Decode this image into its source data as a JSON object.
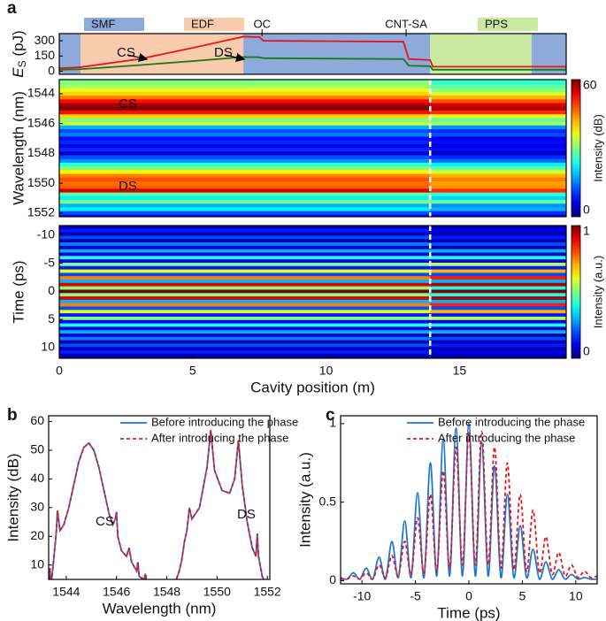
{
  "chart_data": [
    {
      "panel": "a",
      "type": "line",
      "ylabel": "E",
      "ylabel_sub": "S",
      "ylabel_unit": "(pJ)",
      "x": [
        0,
        0.8,
        3,
        5,
        6.9,
        7.5,
        7.65,
        12.9,
        13.1,
        13.9,
        14.0,
        19
      ],
      "series": [
        {
          "name": "CS",
          "color": "#e8141c",
          "values": [
            30,
            40,
            120,
            230,
            340,
            335,
            300,
            290,
            120,
            110,
            45,
            45
          ]
        },
        {
          "name": "DS",
          "color": "#1a7a1a",
          "values": [
            15,
            20,
            60,
            100,
            140,
            138,
            128,
            120,
            55,
            50,
            15,
            15
          ]
        }
      ],
      "xlim": [
        0,
        19
      ],
      "ylim": [
        -30,
        370
      ],
      "yticks": [
        0,
        150,
        300
      ],
      "regions": [
        {
          "color": "#8eaadb",
          "start": 0,
          "end": 0.8
        },
        {
          "color": "#f8cbad",
          "start": 0.8,
          "end": 6.9
        },
        {
          "color": "#8eaadb",
          "start": 6.9,
          "end": 13.9
        },
        {
          "color": "#c9e8a0",
          "start": 13.9,
          "end": 17.7
        },
        {
          "color": "#8eaadb",
          "start": 17.7,
          "end": 19
        }
      ],
      "legend": [
        {
          "name": "SMF",
          "color": "#8eaadb"
        },
        {
          "name": "EDF",
          "color": "#f8cbad"
        },
        {
          "name": "PPS",
          "color": "#c9e8a0"
        }
      ],
      "markers": [
        {
          "label": "OC",
          "x": 7.6
        },
        {
          "label": "CNT-SA",
          "x": 13.0
        }
      ]
    },
    {
      "type": "heatmap",
      "ylabel": "Wavelength (nm)",
      "y": [
        1543.25,
        1543.5,
        1543.75,
        1544.0,
        1544.25,
        1544.5,
        1544.75,
        1545.0,
        1545.25,
        1545.5,
        1545.75,
        1546.0,
        1546.25,
        1546.5,
        1546.75,
        1547.0,
        1547.25,
        1547.5,
        1547.75,
        1548.0,
        1548.25,
        1548.5,
        1548.75,
        1549.0,
        1549.25,
        1549.5,
        1549.75,
        1550.0,
        1550.25,
        1550.5,
        1550.75,
        1551.0,
        1551.25,
        1551.5,
        1551.75,
        1552.0,
        1552.25
      ],
      "x_edges": [
        0,
        13.9,
        19
      ],
      "z": [
        [
          30,
          25
        ],
        [
          32,
          28
        ],
        [
          36,
          30
        ],
        [
          40,
          35
        ],
        [
          45,
          42
        ],
        [
          52,
          48
        ],
        [
          58,
          55
        ],
        [
          60,
          57
        ],
        [
          52,
          50
        ],
        [
          40,
          38
        ],
        [
          30,
          28
        ],
        [
          34,
          32
        ],
        [
          18,
          16
        ],
        [
          12,
          10
        ],
        [
          15,
          12
        ],
        [
          8,
          6
        ],
        [
          10,
          8
        ],
        [
          6,
          5
        ],
        [
          10,
          8
        ],
        [
          5,
          4
        ],
        [
          12,
          10
        ],
        [
          16,
          14
        ],
        [
          25,
          22
        ],
        [
          30,
          28
        ],
        [
          38,
          35
        ],
        [
          45,
          42
        ],
        [
          48,
          45
        ],
        [
          46,
          43
        ],
        [
          47,
          44
        ],
        [
          55,
          50
        ],
        [
          28,
          25
        ],
        [
          22,
          20
        ],
        [
          30,
          28
        ],
        [
          18,
          16
        ],
        [
          22,
          18
        ],
        [
          12,
          10
        ],
        [
          8,
          6
        ]
      ],
      "xlim": [
        0,
        19
      ],
      "ylim": [
        1543.05,
        1552.25
      ],
      "y_inverted": true,
      "yticks": [
        1544,
        1546,
        1548,
        1550,
        1552
      ],
      "vline": 13.9,
      "colorbar": {
        "label": "Intensity (dB)",
        "lim": [
          0,
          60
        ],
        "ticks": [
          0,
          60
        ]
      },
      "annotations": [
        "CS",
        "DS"
      ]
    },
    {
      "type": "heatmap",
      "ylabel": "Time (ps)",
      "xlabel": "Cavity position (m)",
      "y": [
        -11.4,
        -10.8,
        -10.2,
        -9.6,
        -9,
        -8.4,
        -7.8,
        -7.2,
        -6.6,
        -6,
        -5.4,
        -4.8,
        -4.2,
        -3.6,
        -3,
        -2.4,
        -1.8,
        -1.2,
        -0.6,
        0,
        0.6,
        1.2,
        1.8,
        2.4,
        3,
        3.6,
        4.2,
        4.8,
        5.4,
        6,
        6.6,
        7.2,
        7.8,
        8.4,
        9,
        9.6,
        10.2,
        10.8,
        11.4
      ],
      "x_edges": [
        0,
        13.9,
        19
      ],
      "z": [
        [
          0.05,
          0.05
        ],
        [
          0.15,
          0.1
        ],
        [
          0.05,
          0.05
        ],
        [
          0.2,
          0.15
        ],
        [
          0.05,
          0.05
        ],
        [
          0.25,
          0.2
        ],
        [
          0.08,
          0.05
        ],
        [
          0.3,
          0.3
        ],
        [
          0.1,
          0.08
        ],
        [
          0.4,
          0.4
        ],
        [
          0.12,
          0.1
        ],
        [
          0.5,
          0.55
        ],
        [
          0.15,
          0.15
        ],
        [
          0.6,
          0.7
        ],
        [
          0.2,
          0.2
        ],
        [
          0.75,
          0.85
        ],
        [
          0.3,
          0.3
        ],
        [
          0.9,
          0.95
        ],
        [
          0.5,
          0.4
        ],
        [
          1.0,
          1.0
        ],
        [
          0.5,
          0.4
        ],
        [
          0.9,
          0.95
        ],
        [
          0.3,
          0.3
        ],
        [
          0.75,
          0.85
        ],
        [
          0.2,
          0.2
        ],
        [
          0.6,
          0.7
        ],
        [
          0.15,
          0.15
        ],
        [
          0.5,
          0.55
        ],
        [
          0.12,
          0.1
        ],
        [
          0.4,
          0.4
        ],
        [
          0.1,
          0.08
        ],
        [
          0.3,
          0.3
        ],
        [
          0.08,
          0.05
        ],
        [
          0.25,
          0.2
        ],
        [
          0.05,
          0.05
        ],
        [
          0.2,
          0.15
        ],
        [
          0.05,
          0.05
        ],
        [
          0.15,
          0.1
        ],
        [
          0.05,
          0.05
        ]
      ],
      "xlim": [
        0,
        19
      ],
      "xticks": [
        0,
        5,
        10,
        15
      ],
      "ylim": [
        -11.7,
        11.9
      ],
      "y_inverted": true,
      "yticks": [
        -10,
        -5,
        0,
        5,
        10
      ],
      "vline": 13.9,
      "colorbar": {
        "label": "Intensity (a.u.)",
        "lim": [
          0,
          1
        ],
        "ticks": [
          0,
          1
        ]
      }
    },
    {
      "panel": "b",
      "type": "line",
      "xlabel": "Wavelength (nm)",
      "ylabel": "Intensity (dB)",
      "x": [
        1543.3,
        1543.35,
        1543.4,
        1543.6,
        1543.65,
        1543.75,
        1543.9,
        1544.1,
        1544.3,
        1544.5,
        1544.7,
        1544.9,
        1545.1,
        1545.3,
        1545.5,
        1545.7,
        1545.85,
        1545.95,
        1546.0,
        1546.05,
        1546.2,
        1546.4,
        1546.5,
        1546.6,
        1546.8,
        1546.85,
        1546.9,
        1547.1,
        1547.15,
        1547.2,
        1547.5,
        1548.3,
        1548.5,
        1548.6,
        1548.7,
        1548.8,
        1548.9,
        1549.0,
        1549.3,
        1549.6,
        1549.75,
        1549.9,
        1550.2,
        1550.5,
        1550.7,
        1550.85,
        1551.0,
        1551.2,
        1551.4,
        1551.55,
        1551.6,
        1551.65,
        1551.8,
        1552.0
      ],
      "series": [
        {
          "name": "Before introducing the phase",
          "color": "#1f77d0",
          "dash": false,
          "values": [
            3,
            9,
            3,
            21,
            29,
            22,
            24,
            30,
            38,
            46,
            51,
            52.5,
            50,
            44,
            36,
            28,
            24,
            26,
            28.5,
            20,
            15,
            13,
            16,
            11,
            8,
            11,
            6,
            5,
            7,
            4,
            2,
            3,
            8,
            12,
            18,
            22,
            30,
            26,
            30,
            44,
            57,
            43,
            36,
            35,
            40,
            53.5,
            38,
            25,
            16,
            13,
            21,
            13,
            6,
            3
          ]
        },
        {
          "name": "After introducing the phase",
          "color": "#e8141c",
          "dash": true,
          "values": [
            3,
            9,
            3,
            21,
            29,
            22,
            24,
            30,
            38,
            46,
            51,
            52.5,
            50,
            44,
            36,
            28,
            24,
            26,
            28.5,
            20,
            15,
            13,
            16,
            11,
            8,
            11,
            6,
            5,
            7,
            4,
            2,
            3,
            8,
            12,
            18,
            22,
            30,
            26,
            30,
            44,
            57,
            43,
            36,
            35,
            40,
            53.5,
            38,
            25,
            16,
            13,
            21,
            13,
            6,
            3
          ]
        }
      ],
      "xlim": [
        1543.3,
        1552.1
      ],
      "ylim": [
        5,
        62
      ],
      "xticks": [
        1544,
        1546,
        1548,
        1550,
        1552
      ],
      "yticks": [
        10,
        20,
        30,
        40,
        50,
        60
      ],
      "annotations": [
        "CS",
        "DS"
      ]
    },
    {
      "panel": "c",
      "type": "line",
      "smooth": true,
      "xlabel": "Time (ps)",
      "ylabel": "Intensity (a.u.)",
      "x": [
        -12,
        -11.4,
        -10.8,
        -10.2,
        -9.6,
        -9,
        -8.4,
        -7.8,
        -7.2,
        -6.6,
        -6,
        -5.4,
        -4.8,
        -4.2,
        -3.6,
        -3,
        -2.4,
        -1.8,
        -1.2,
        -0.6,
        0,
        0.6,
        1.2,
        1.8,
        2.4,
        3,
        3.6,
        4.2,
        4.8,
        5.4,
        6,
        6.6,
        7.2,
        7.8,
        8.4,
        9,
        9.6,
        10.2,
        10.8,
        11.4,
        12
      ],
      "series": [
        {
          "name": "Before introducing the phase",
          "color": "#1f77d0",
          "dash": false,
          "values": [
            0.02,
            0.01,
            0.05,
            0.01,
            0.08,
            0.01,
            0.15,
            0.01,
            0.25,
            0.02,
            0.38,
            0.02,
            0.56,
            0.02,
            0.75,
            0.03,
            0.9,
            0.03,
            0.97,
            0.03,
            1.0,
            0.03,
            0.88,
            0.03,
            0.73,
            0.02,
            0.55,
            0.02,
            0.35,
            0.02,
            0.2,
            0.01,
            0.12,
            0.01,
            0.07,
            0.01,
            0.04,
            0.01,
            0.02,
            0.01,
            0.01
          ]
        },
        {
          "name": "After introducing the phase",
          "color": "#e8141c",
          "dash": true,
          "values": [
            0.01,
            0.01,
            0.03,
            0.01,
            0.05,
            0.01,
            0.1,
            0.02,
            0.16,
            0.03,
            0.25,
            0.04,
            0.4,
            0.05,
            0.55,
            0.06,
            0.7,
            0.08,
            0.85,
            0.1,
            0.95,
            0.1,
            0.95,
            0.1,
            0.85,
            0.08,
            0.75,
            0.07,
            0.55,
            0.06,
            0.45,
            0.05,
            0.28,
            0.04,
            0.18,
            0.03,
            0.1,
            0.02,
            0.06,
            0.02,
            0.03
          ]
        }
      ],
      "xlim": [
        -12,
        12
      ],
      "ylim": [
        -0.02,
        1.05
      ],
      "xticks": [
        -10,
        -5,
        0,
        5,
        10
      ],
      "yticks": [
        0,
        0.5,
        1
      ]
    }
  ]
}
